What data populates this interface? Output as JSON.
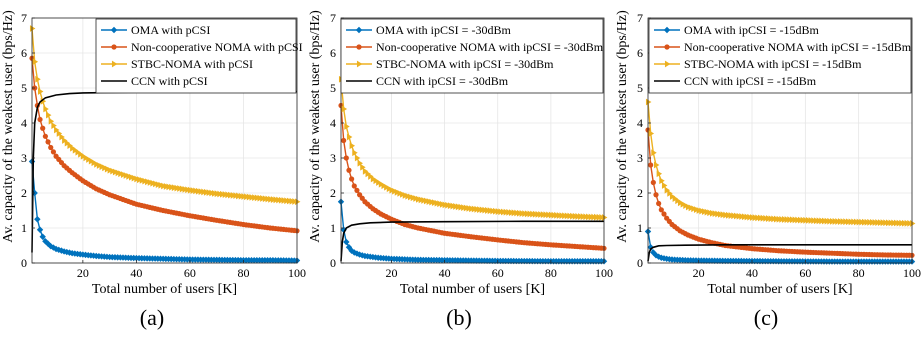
{
  "colors": {
    "oma": "#0072BD",
    "noma": "#D95319",
    "stbc": "#EDB120",
    "ccn": "#000000",
    "grid": "#e6e6e6",
    "axis": "#262626"
  },
  "chart_data": [
    {
      "type": "line",
      "caption": "(a)",
      "xlabel": "Total number of users [K]",
      "ylabel": "Av. capacity of the weakest user (bps/Hz)",
      "xlim": [
        1,
        100
      ],
      "ylim": [
        0,
        7
      ],
      "xticks": [
        20,
        40,
        60,
        80,
        100
      ],
      "yticks": [
        0,
        1,
        2,
        3,
        4,
        5,
        6,
        7
      ],
      "grid": true,
      "legend_position": "top-right",
      "series": [
        {
          "name": "OMA with pCSI",
          "key": "oma",
          "marker": "diamond",
          "points": [
            [
              1,
              2.9
            ],
            [
              2,
              2.0
            ],
            [
              3,
              1.25
            ],
            [
              4,
              0.95
            ],
            [
              5,
              0.75
            ],
            [
              6,
              0.62
            ],
            [
              8,
              0.48
            ],
            [
              10,
              0.4
            ],
            [
              13,
              0.33
            ],
            [
              16,
              0.28
            ],
            [
              20,
              0.24
            ],
            [
              25,
              0.2
            ],
            [
              30,
              0.17
            ],
            [
              40,
              0.14
            ],
            [
              50,
              0.12
            ],
            [
              60,
              0.1
            ],
            [
              70,
              0.09
            ],
            [
              80,
              0.08
            ],
            [
              90,
              0.08
            ],
            [
              100,
              0.07
            ]
          ]
        },
        {
          "name": "Non-cooperative NOMA with pCSI",
          "key": "noma",
          "marker": "circle",
          "points": [
            [
              1,
              5.85
            ],
            [
              2,
              5.0
            ],
            [
              3,
              4.5
            ],
            [
              4,
              4.1
            ],
            [
              5,
              3.85
            ],
            [
              6,
              3.62
            ],
            [
              8,
              3.3
            ],
            [
              10,
              3.05
            ],
            [
              13,
              2.78
            ],
            [
              16,
              2.58
            ],
            [
              20,
              2.35
            ],
            [
              25,
              2.12
            ],
            [
              30,
              1.95
            ],
            [
              40,
              1.68
            ],
            [
              50,
              1.5
            ],
            [
              60,
              1.35
            ],
            [
              70,
              1.22
            ],
            [
              80,
              1.1
            ],
            [
              90,
              1.0
            ],
            [
              100,
              0.92
            ]
          ]
        },
        {
          "name": "STBC-NOMA with pCSI",
          "key": "stbc",
          "marker": "triangle",
          "points": [
            [
              1,
              6.7
            ],
            [
              2,
              5.75
            ],
            [
              3,
              5.25
            ],
            [
              4,
              4.9
            ],
            [
              5,
              4.62
            ],
            [
              6,
              4.4
            ],
            [
              8,
              4.05
            ],
            [
              10,
              3.8
            ],
            [
              13,
              3.5
            ],
            [
              16,
              3.28
            ],
            [
              20,
              3.05
            ],
            [
              25,
              2.82
            ],
            [
              30,
              2.65
            ],
            [
              40,
              2.4
            ],
            [
              50,
              2.2
            ],
            [
              60,
              2.08
            ],
            [
              70,
              1.98
            ],
            [
              80,
              1.9
            ],
            [
              90,
              1.82
            ],
            [
              100,
              1.75
            ]
          ]
        },
        {
          "name": "CCN with pCSI",
          "key": "ccn",
          "marker": "none",
          "points": [
            [
              1,
              0.3
            ],
            [
              1.5,
              3.0
            ],
            [
              2,
              4.0
            ],
            [
              3,
              4.45
            ],
            [
              4,
              4.6
            ],
            [
              6,
              4.72
            ],
            [
              10,
              4.8
            ],
            [
              15,
              4.84
            ],
            [
              20,
              4.86
            ],
            [
              40,
              4.88
            ],
            [
              70,
              4.89
            ],
            [
              100,
              4.9
            ]
          ]
        }
      ]
    },
    {
      "type": "line",
      "caption": "(b)",
      "xlabel": "Total number of users [K]",
      "ylabel": "Av. capacity of the weakest user (bps/Hz)",
      "xlim": [
        1,
        100
      ],
      "ylim": [
        0,
        7
      ],
      "xticks": [
        20,
        40,
        60,
        80,
        100
      ],
      "yticks": [
        0,
        1,
        2,
        3,
        4,
        5,
        6,
        7
      ],
      "grid": true,
      "legend_position": "top-right",
      "series": [
        {
          "name": "OMA with ipCSI = -30dBm",
          "key": "oma",
          "marker": "diamond",
          "points": [
            [
              1,
              1.75
            ],
            [
              2,
              0.95
            ],
            [
              3,
              0.6
            ],
            [
              4,
              0.45
            ],
            [
              5,
              0.35
            ],
            [
              6,
              0.3
            ],
            [
              8,
              0.24
            ],
            [
              10,
              0.2
            ],
            [
              15,
              0.15
            ],
            [
              20,
              0.12
            ],
            [
              30,
              0.09
            ],
            [
              40,
              0.08
            ],
            [
              60,
              0.06
            ],
            [
              80,
              0.05
            ],
            [
              100,
              0.05
            ]
          ]
        },
        {
          "name": "Non-cooperative NOMA with ipCSI = -30dBm",
          "key": "noma",
          "marker": "circle",
          "points": [
            [
              1,
              4.5
            ],
            [
              2,
              3.5
            ],
            [
              3,
              3.0
            ],
            [
              4,
              2.65
            ],
            [
              5,
              2.4
            ],
            [
              6,
              2.2
            ],
            [
              8,
              1.95
            ],
            [
              10,
              1.75
            ],
            [
              13,
              1.55
            ],
            [
              16,
              1.4
            ],
            [
              20,
              1.25
            ],
            [
              25,
              1.1
            ],
            [
              30,
              1.0
            ],
            [
              40,
              0.85
            ],
            [
              50,
              0.75
            ],
            [
              60,
              0.66
            ],
            [
              70,
              0.58
            ],
            [
              80,
              0.52
            ],
            [
              90,
              0.47
            ],
            [
              100,
              0.42
            ]
          ]
        },
        {
          "name": "STBC-NOMA with ipCSI = -30dBm",
          "key": "stbc",
          "marker": "triangle",
          "points": [
            [
              1,
              5.25
            ],
            [
              2,
              4.4
            ],
            [
              3,
              3.9
            ],
            [
              4,
              3.6
            ],
            [
              5,
              3.35
            ],
            [
              6,
              3.15
            ],
            [
              8,
              2.85
            ],
            [
              10,
              2.62
            ],
            [
              13,
              2.4
            ],
            [
              16,
              2.25
            ],
            [
              20,
              2.08
            ],
            [
              25,
              1.93
            ],
            [
              30,
              1.82
            ],
            [
              40,
              1.66
            ],
            [
              50,
              1.55
            ],
            [
              60,
              1.47
            ],
            [
              70,
              1.41
            ],
            [
              80,
              1.37
            ],
            [
              90,
              1.33
            ],
            [
              100,
              1.3
            ]
          ]
        },
        {
          "name": "CCN with ipCSI = -30dBm",
          "key": "ccn",
          "marker": "none",
          "points": [
            [
              1,
              0.05
            ],
            [
              1.5,
              0.6
            ],
            [
              2,
              0.85
            ],
            [
              3,
              1.0
            ],
            [
              5,
              1.08
            ],
            [
              8,
              1.12
            ],
            [
              12,
              1.15
            ],
            [
              20,
              1.17
            ],
            [
              40,
              1.18
            ],
            [
              70,
              1.19
            ],
            [
              100,
              1.19
            ]
          ]
        }
      ]
    },
    {
      "type": "line",
      "caption": "(c)",
      "xlabel": "Total number of users [K]",
      "ylabel": "Av. capacity of the weakest user (bps/Hz)",
      "xlim": [
        1,
        100
      ],
      "ylim": [
        0,
        7
      ],
      "xticks": [
        20,
        40,
        60,
        80,
        100
      ],
      "yticks": [
        0,
        1,
        2,
        3,
        4,
        5,
        6,
        7
      ],
      "grid": true,
      "legend_position": "top-right",
      "series": [
        {
          "name": "OMA with ipCSI = -15dBm",
          "key": "oma",
          "marker": "diamond",
          "points": [
            [
              1,
              0.9
            ],
            [
              2,
              0.45
            ],
            [
              3,
              0.3
            ],
            [
              4,
              0.22
            ],
            [
              5,
              0.18
            ],
            [
              6,
              0.15
            ],
            [
              8,
              0.12
            ],
            [
              10,
              0.1
            ],
            [
              15,
              0.08
            ],
            [
              20,
              0.07
            ],
            [
              30,
              0.06
            ],
            [
              50,
              0.05
            ],
            [
              75,
              0.04
            ],
            [
              100,
              0.04
            ]
          ]
        },
        {
          "name": "Non-cooperative NOMA with ipCSI = -15dBm",
          "key": "noma",
          "marker": "circle",
          "points": [
            [
              1,
              3.8
            ],
            [
              2,
              2.8
            ],
            [
              3,
              2.3
            ],
            [
              4,
              1.95
            ],
            [
              5,
              1.7
            ],
            [
              6,
              1.52
            ],
            [
              8,
              1.28
            ],
            [
              10,
              1.1
            ],
            [
              13,
              0.92
            ],
            [
              16,
              0.8
            ],
            [
              20,
              0.68
            ],
            [
              25,
              0.58
            ],
            [
              30,
              0.5
            ],
            [
              40,
              0.41
            ],
            [
              50,
              0.35
            ],
            [
              60,
              0.31
            ],
            [
              70,
              0.28
            ],
            [
              80,
              0.25
            ],
            [
              90,
              0.23
            ],
            [
              100,
              0.22
            ]
          ]
        },
        {
          "name": "STBC-NOMA with ipCSI = -15dBm",
          "key": "stbc",
          "marker": "triangle",
          "points": [
            [
              1,
              4.6
            ],
            [
              2,
              3.7
            ],
            [
              3,
              3.15
            ],
            [
              4,
              2.8
            ],
            [
              5,
              2.55
            ],
            [
              6,
              2.35
            ],
            [
              8,
              2.08
            ],
            [
              10,
              1.9
            ],
            [
              13,
              1.72
            ],
            [
              16,
              1.6
            ],
            [
              20,
              1.5
            ],
            [
              25,
              1.42
            ],
            [
              30,
              1.37
            ],
            [
              40,
              1.3
            ],
            [
              50,
              1.25
            ],
            [
              60,
              1.22
            ],
            [
              70,
              1.19
            ],
            [
              80,
              1.17
            ],
            [
              90,
              1.15
            ],
            [
              100,
              1.13
            ]
          ]
        },
        {
          "name": "CCN with ipCSI = -15dBm",
          "key": "ccn",
          "marker": "none",
          "points": [
            [
              1,
              0.05
            ],
            [
              1.5,
              0.3
            ],
            [
              2,
              0.4
            ],
            [
              3,
              0.45
            ],
            [
              5,
              0.49
            ],
            [
              8,
              0.5
            ],
            [
              15,
              0.51
            ],
            [
              30,
              0.52
            ],
            [
              60,
              0.52
            ],
            [
              100,
              0.52
            ]
          ]
        }
      ]
    }
  ]
}
